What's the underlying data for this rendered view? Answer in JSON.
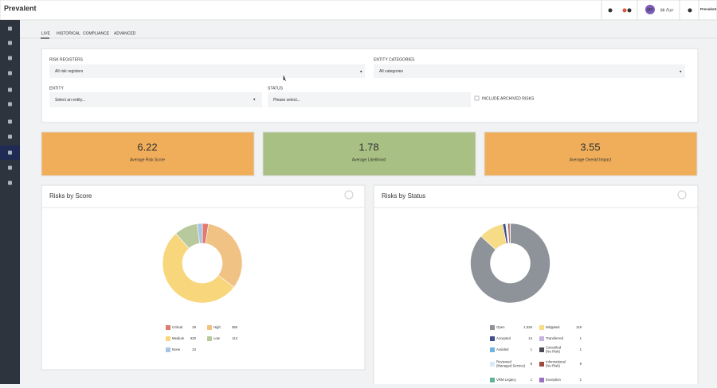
{
  "header": {
    "logo": "Prevalent",
    "user_initials": "MP",
    "user_name": "Mr Furr",
    "org": "Prevalent"
  },
  "tabs": [
    "LIVE",
    "HISTORICAL",
    "COMPLIANCE",
    "ADVANCED"
  ],
  "filters": {
    "risk_registers": {
      "label": "RISK REGISTERS",
      "value": "All risk registers"
    },
    "entity_categories": {
      "label": "ENTITY CATEGORIES",
      "value": "All categories"
    },
    "entity": {
      "label": "ENTITY",
      "value": "Select an entity..."
    },
    "status": {
      "label": "STATUS",
      "placeholder": "Please select..."
    },
    "archived": "INCLUDE ARCHIVED RISKS"
  },
  "kpis": [
    {
      "value": "6.22",
      "label": "Average Risk Score",
      "color": "#f0ae5a"
    },
    {
      "value": "1.78",
      "label": "Average Likelihood",
      "color": "#a8c083"
    },
    {
      "value": "3.55",
      "label": "Average Overall Impact",
      "color": "#f0ae5a"
    }
  ],
  "charts": [
    {
      "type": "donut",
      "title": "Risks by Score",
      "items": [
        {
          "name": "Critical",
          "value": 29,
          "color": "#e07a6f"
        },
        {
          "name": "High",
          "value": 385,
          "color": "#f0c283"
        },
        {
          "name": "Medium",
          "value": 620,
          "color": "#f8d67c"
        },
        {
          "name": "Low",
          "value": 112,
          "color": "#b7c99d"
        },
        {
          "name": "None",
          "value": 24,
          "color": "#a9c4e6"
        }
      ]
    },
    {
      "type": "donut",
      "title": "Risks by Status",
      "items": [
        {
          "name": "Open",
          "value": 1026,
          "value_label": "1,026",
          "color": "#8d9399"
        },
        {
          "name": "Mitigated",
          "value": 119,
          "color": "#f6dc86"
        },
        {
          "name": "Accepted",
          "value": 14,
          "color": "#3e4f8c"
        },
        {
          "name": "Transferred",
          "value": 1,
          "color": "#c7b3e3"
        },
        {
          "name": "Avoided",
          "value": 1,
          "color": "#6fb3e0"
        },
        {
          "name": "Cancelled (No Risk)",
          "value": 1,
          "color": "#4a4e54"
        },
        {
          "name": "Reviewed (Managed Service)",
          "value": 8,
          "color": "#d8ecf6"
        },
        {
          "name": "Informational (No Risk)",
          "value": 9,
          "color": "#a0473e"
        },
        {
          "name": "VRM Legacy",
          "value": 1,
          "color": "#5fb39a"
        },
        {
          "name": "Exception",
          "value": 1,
          "color": "#9b6fc3"
        }
      ]
    }
  ]
}
